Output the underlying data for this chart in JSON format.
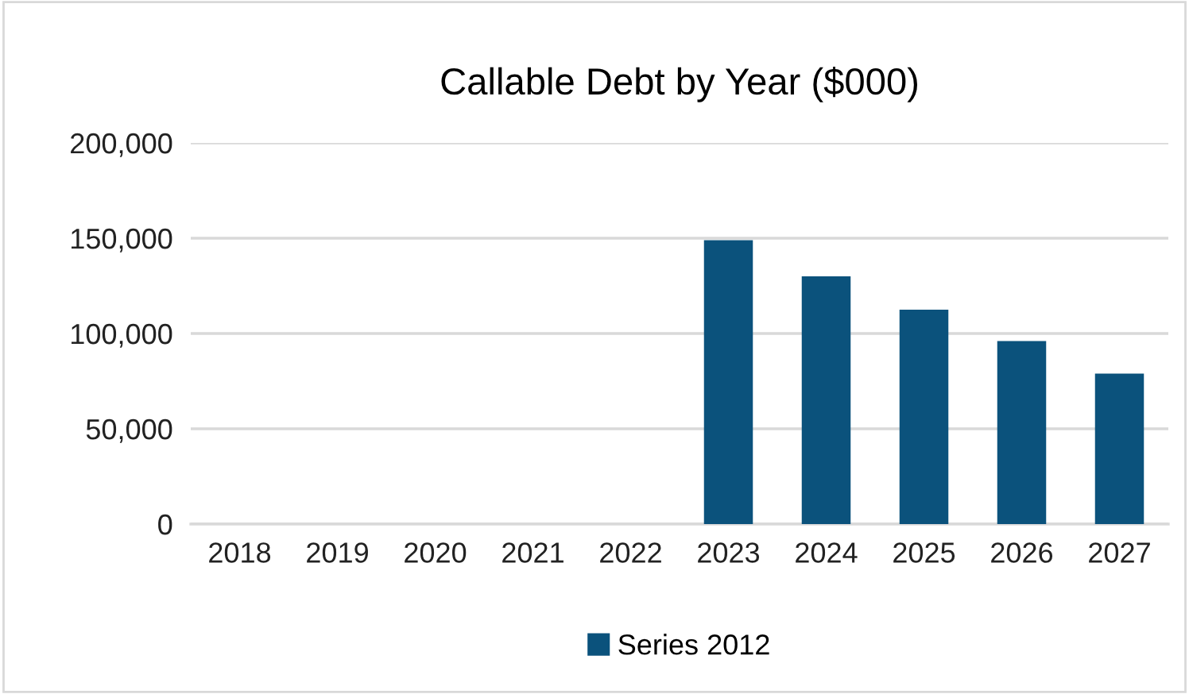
{
  "chart_data": {
    "type": "bar",
    "title": "Callable Debt by Year ($000)",
    "categories": [
      "2018",
      "2019",
      "2020",
      "2021",
      "2022",
      "2023",
      "2024",
      "2025",
      "2026",
      "2027"
    ],
    "series": [
      {
        "name": "Series 2012",
        "color": "#0b527c",
        "values": [
          null,
          null,
          null,
          null,
          null,
          149000,
          130000,
          112500,
          96000,
          79000
        ]
      }
    ],
    "ylim": [
      0,
      200000
    ],
    "yticks": [
      {
        "value": 0,
        "label": "0"
      },
      {
        "value": 50000,
        "label": "50,000"
      },
      {
        "value": 100000,
        "label": "100,000"
      },
      {
        "value": 150000,
        "label": "150,000"
      },
      {
        "value": 200000,
        "label": "200,000"
      }
    ],
    "grid": "y",
    "legend": "bottom"
  }
}
